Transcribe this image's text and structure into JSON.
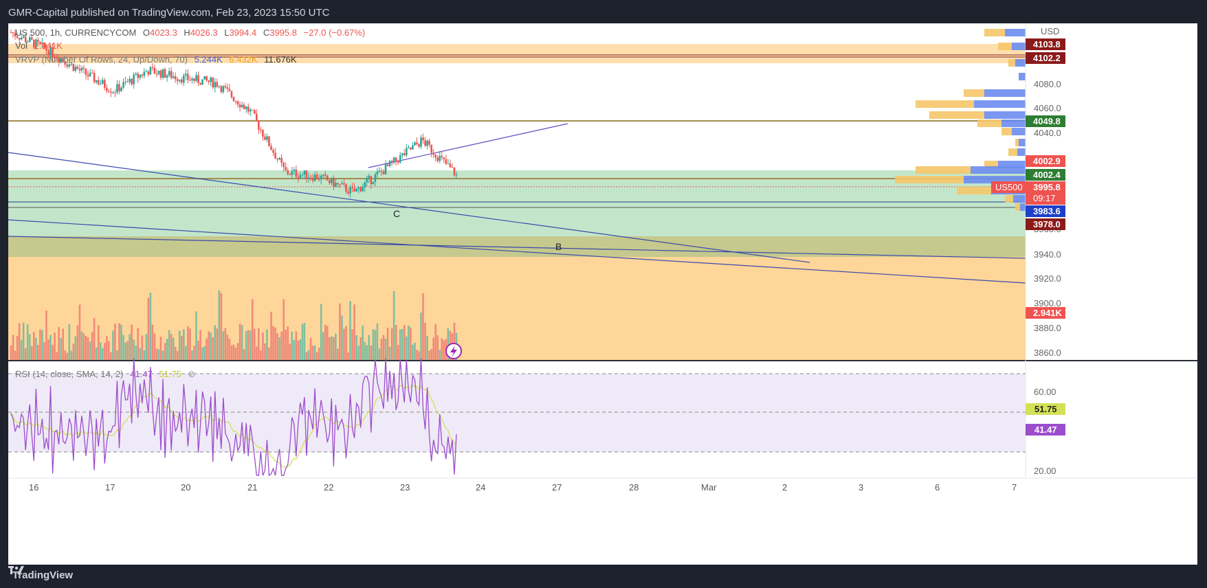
{
  "header": {
    "publisher": "GMR-Capital published on TradingView.com, Feb 23, 2023 15:50 UTC"
  },
  "footer": {
    "brand": "TradingView"
  },
  "legend": {
    "symbol": "US 500, 1h, CURRENCYCOM",
    "ohlc": {
      "o_label": "O",
      "o": "4023.3",
      "h_label": "H",
      "h": "4026.3",
      "l_label": "L",
      "l": "3994.4",
      "c_label": "C",
      "c": "3995.8",
      "chg": "−27.0 (−0.67%)"
    },
    "volume": {
      "label": "Vol",
      "value": "2.941K"
    },
    "vrvp": {
      "label": "VRVP (Number Of Rows, 24, Up/Down, 70)",
      "up": "5.244K",
      "down": "6.432K",
      "total": "11.676K"
    },
    "rsi": {
      "label": "RSI (14, close, SMA, 14, 2)",
      "rsi": "41.47",
      "sma": "51.75"
    }
  },
  "price_axis": {
    "currency": "USD",
    "ticks": [
      "4080.0",
      "4060.0",
      "4040.0",
      "3960.0",
      "3940.0",
      "3920.0",
      "3900.0",
      "3880.0",
      "3860.0"
    ],
    "labels": {
      "l4103": "4103.8",
      "l4102": "4102.2",
      "l4049": "4049.8",
      "l4002_9": "4002.9",
      "l4002_4": "4002.4",
      "symbol": "US500",
      "last": "3995.8",
      "countdown": "09:17",
      "l3983": "3983.6",
      "l3978": "3978.0",
      "vol": "2.941K"
    }
  },
  "rsi_axis": {
    "ticks": [
      "60.00",
      "20.00"
    ],
    "sma_label": "51.75",
    "rsi_label": "41.47"
  },
  "time_axis": {
    "labels": [
      "16",
      "17",
      "20",
      "21",
      "22",
      "23",
      "24",
      "27",
      "28",
      "Mar",
      "2",
      "3",
      "6",
      "7"
    ]
  },
  "annotations": {
    "wave_c": "C",
    "wave_b": "B"
  },
  "colors": {
    "up": "#26a69a",
    "down": "#ef5350",
    "rsi": "#9c4dcc",
    "rsi_sma": "#d4e157",
    "zone_green": "#c3e6cb",
    "zone_orange": "#ffd699",
    "trendline": "#3949ab"
  },
  "chart_data": {
    "type": "candlestick",
    "symbol": "US 500",
    "timeframe": "1h",
    "y_range": [
      3850,
      4115
    ],
    "price_levels": [
      4103.8,
      4102.2,
      4049.8,
      4002.9,
      4002.4,
      3983.6,
      3978.0
    ],
    "last_price": 3995.8,
    "close_path": [
      {
        "x": "Feb 16",
        "close": 4108
      },
      {
        "x": "Feb 16 PM",
        "close": 4095
      },
      {
        "x": "Feb 17",
        "close": 4078
      },
      {
        "x": "Feb 17 PM",
        "close": 4062
      },
      {
        "x": "Feb 20",
        "close": 4078
      },
      {
        "x": "Feb 20 PM",
        "close": 4072
      },
      {
        "x": "Feb 21",
        "close": 4068
      },
      {
        "x": "Feb 21 PM",
        "close": 4045
      },
      {
        "x": "Feb 22",
        "close": 3998
      },
      {
        "x": "Feb 22 PM",
        "close": 3994
      },
      {
        "x": "Feb 22 late",
        "close": 3982
      },
      {
        "x": "Feb 23",
        "close": 4002
      },
      {
        "x": "Feb 23 PM",
        "close": 4023
      },
      {
        "x": "Feb 23 last",
        "close": 3995.8
      }
    ],
    "rsi": {
      "last": 41.47,
      "sma": 51.75,
      "bands": [
        70,
        30
      ]
    }
  }
}
